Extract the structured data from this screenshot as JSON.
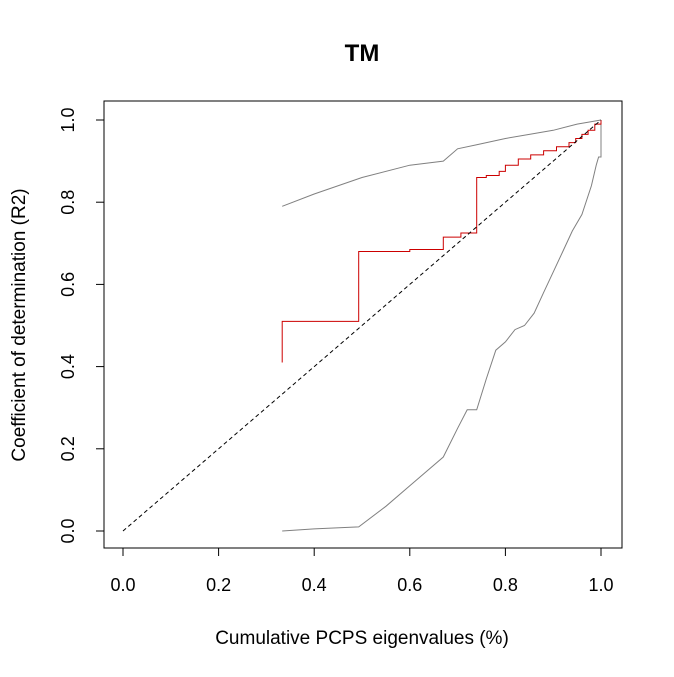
{
  "chart_data": {
    "type": "line",
    "title": "TM",
    "xlabel": "Cumulative PCPS eigenvalues (%)",
    "ylabel": "Coefficient of determination (R2)",
    "xlim": [
      0.0,
      1.0
    ],
    "ylim": [
      0.0,
      1.0
    ],
    "xticks": [
      "0.0",
      "0.2",
      "0.4",
      "0.6",
      "0.8",
      "1.0"
    ],
    "yticks": [
      "0.0",
      "0.2",
      "0.4",
      "0.6",
      "0.8",
      "1.0"
    ],
    "grid": false,
    "legend": "none",
    "series": [
      {
        "role": "upper-envelope",
        "color": "#808080",
        "style": "solid",
        "points": [
          [
            0.333,
            0.79
          ],
          [
            0.4,
            0.82
          ],
          [
            0.5,
            0.86
          ],
          [
            0.6,
            0.89
          ],
          [
            0.67,
            0.9
          ],
          [
            0.7,
            0.93
          ],
          [
            0.74,
            0.94
          ],
          [
            0.8,
            0.955
          ],
          [
            0.85,
            0.965
          ],
          [
            0.9,
            0.975
          ],
          [
            0.95,
            0.99
          ],
          [
            1.0,
            1.0
          ]
        ]
      },
      {
        "role": "lower-envelope",
        "color": "#808080",
        "style": "solid",
        "points": [
          [
            0.333,
            0.0
          ],
          [
            0.4,
            0.005
          ],
          [
            0.493,
            0.01
          ],
          [
            0.55,
            0.06
          ],
          [
            0.6,
            0.11
          ],
          [
            0.67,
            0.18
          ],
          [
            0.7,
            0.25
          ],
          [
            0.72,
            0.295
          ],
          [
            0.74,
            0.295
          ],
          [
            0.76,
            0.37
          ],
          [
            0.78,
            0.44
          ],
          [
            0.8,
            0.46
          ],
          [
            0.82,
            0.49
          ],
          [
            0.84,
            0.5
          ],
          [
            0.86,
            0.53
          ],
          [
            0.88,
            0.58
          ],
          [
            0.9,
            0.63
          ],
          [
            0.92,
            0.68
          ],
          [
            0.94,
            0.73
          ],
          [
            0.96,
            0.77
          ],
          [
            0.98,
            0.84
          ],
          [
            0.99,
            0.89
          ],
          [
            0.995,
            0.91
          ],
          [
            1.0,
            0.91
          ],
          [
            1.0,
            1.0
          ]
        ]
      },
      {
        "role": "observed",
        "color": "#cc0000",
        "style": "step",
        "points": [
          [
            0.333,
            0.41
          ],
          [
            0.333,
            0.51
          ],
          [
            0.493,
            0.51
          ],
          [
            0.493,
            0.68
          ],
          [
            0.6,
            0.68
          ],
          [
            0.6,
            0.685
          ],
          [
            0.67,
            0.685
          ],
          [
            0.67,
            0.715
          ],
          [
            0.707,
            0.715
          ],
          [
            0.707,
            0.725
          ],
          [
            0.74,
            0.725
          ],
          [
            0.74,
            0.86
          ],
          [
            0.76,
            0.86
          ],
          [
            0.76,
            0.865
          ],
          [
            0.787,
            0.865
          ],
          [
            0.787,
            0.875
          ],
          [
            0.8,
            0.875
          ],
          [
            0.8,
            0.89
          ],
          [
            0.827,
            0.89
          ],
          [
            0.827,
            0.905
          ],
          [
            0.853,
            0.905
          ],
          [
            0.853,
            0.915
          ],
          [
            0.88,
            0.915
          ],
          [
            0.88,
            0.925
          ],
          [
            0.907,
            0.925
          ],
          [
            0.907,
            0.935
          ],
          [
            0.933,
            0.935
          ],
          [
            0.933,
            0.945
          ],
          [
            0.947,
            0.945
          ],
          [
            0.947,
            0.955
          ],
          [
            0.96,
            0.955
          ],
          [
            0.96,
            0.965
          ],
          [
            0.973,
            0.965
          ],
          [
            0.973,
            0.975
          ],
          [
            0.987,
            0.975
          ],
          [
            0.987,
            0.99
          ],
          [
            1.0,
            0.99
          ],
          [
            1.0,
            1.0
          ]
        ]
      },
      {
        "role": "reference-diagonal",
        "color": "#000000",
        "style": "dashed",
        "points": [
          [
            0.0,
            0.0
          ],
          [
            1.0,
            1.0
          ]
        ]
      }
    ]
  }
}
